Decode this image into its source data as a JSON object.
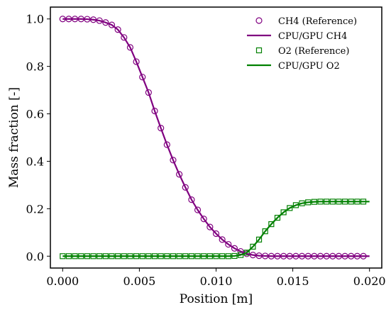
{
  "chart_data": {
    "type": "line",
    "xlabel": "Position [m]",
    "ylabel": "Mass fraction [-]",
    "xlim": [
      -0.0008,
      0.0208
    ],
    "ylim": [
      -0.05,
      1.05
    ],
    "xticks": [
      0.0,
      0.005,
      0.01,
      0.015,
      0.02
    ],
    "xtick_labels": [
      "0.000",
      "0.005",
      "0.010",
      "0.015",
      "0.020"
    ],
    "yticks": [
      0.0,
      0.2,
      0.4,
      0.6,
      0.8,
      1.0
    ],
    "ytick_labels": [
      "0.0",
      "0.2",
      "0.4",
      "0.6",
      "0.8",
      "1.0"
    ],
    "grid": false,
    "legend_position": "top-right",
    "series": [
      {
        "name": "CH4 (Reference)",
        "kind": "marker-circle",
        "color": "#800080",
        "x": [
          0.0,
          0.0004,
          0.0008,
          0.0012,
          0.0016,
          0.002,
          0.0024,
          0.0028,
          0.0032,
          0.0036,
          0.004,
          0.0044,
          0.0048,
          0.0052,
          0.0056,
          0.006,
          0.0064,
          0.0068,
          0.0072,
          0.0076,
          0.008,
          0.0084,
          0.0088,
          0.0092,
          0.0096,
          0.01,
          0.0104,
          0.0108,
          0.0112,
          0.0116,
          0.012,
          0.0124,
          0.0128,
          0.0132,
          0.0136,
          0.014,
          0.0144,
          0.0148,
          0.0152,
          0.0156,
          0.016,
          0.0164,
          0.0168,
          0.0172,
          0.0176,
          0.018,
          0.0184,
          0.0188,
          0.0192,
          0.0196
        ],
        "y": [
          1.0,
          1.0,
          1.0,
          1.0,
          0.999,
          0.997,
          0.993,
          0.985,
          0.975,
          0.955,
          0.922,
          0.88,
          0.82,
          0.755,
          0.69,
          0.612,
          0.54,
          0.47,
          0.405,
          0.345,
          0.29,
          0.238,
          0.195,
          0.157,
          0.123,
          0.095,
          0.07,
          0.05,
          0.033,
          0.02,
          0.01,
          0.005,
          0.002,
          0.001,
          0.0,
          0.0,
          0.0,
          0.0,
          0.0,
          0.0,
          0.0,
          0.0,
          0.0,
          0.0,
          0.0,
          0.0,
          0.0,
          0.0,
          0.0,
          0.0
        ]
      },
      {
        "name": "CPU/GPU CH4",
        "kind": "line",
        "color": "#800080",
        "x": [
          0.0,
          0.0004,
          0.0008,
          0.0012,
          0.0016,
          0.002,
          0.0024,
          0.0028,
          0.0032,
          0.0036,
          0.004,
          0.0044,
          0.0048,
          0.0052,
          0.0056,
          0.006,
          0.0064,
          0.0068,
          0.0072,
          0.0076,
          0.008,
          0.0084,
          0.0088,
          0.0092,
          0.0096,
          0.01,
          0.0104,
          0.0108,
          0.0112,
          0.0116,
          0.012,
          0.0124,
          0.0128,
          0.0132,
          0.0136,
          0.014,
          0.0144,
          0.0148,
          0.0152,
          0.0156,
          0.016,
          0.0164,
          0.0168,
          0.0172,
          0.0176,
          0.018,
          0.0184,
          0.0188,
          0.0192,
          0.0196,
          0.02
        ],
        "y": [
          1.0,
          1.0,
          1.0,
          1.0,
          0.999,
          0.997,
          0.993,
          0.985,
          0.975,
          0.955,
          0.922,
          0.88,
          0.82,
          0.755,
          0.69,
          0.612,
          0.54,
          0.47,
          0.405,
          0.345,
          0.29,
          0.238,
          0.195,
          0.157,
          0.123,
          0.095,
          0.07,
          0.05,
          0.033,
          0.02,
          0.01,
          0.005,
          0.002,
          0.001,
          0.0,
          0.0,
          0.0,
          0.0,
          0.0,
          0.0,
          0.0,
          0.0,
          0.0,
          0.0,
          0.0,
          0.0,
          0.0,
          0.0,
          0.0,
          0.0,
          0.0
        ]
      },
      {
        "name": "O2 (Reference)",
        "kind": "marker-square",
        "color": "#008000",
        "x": [
          0.0,
          0.0004,
          0.0008,
          0.0012,
          0.0016,
          0.002,
          0.0024,
          0.0028,
          0.0032,
          0.0036,
          0.004,
          0.0044,
          0.0048,
          0.0052,
          0.0056,
          0.006,
          0.0064,
          0.0068,
          0.0072,
          0.0076,
          0.008,
          0.0084,
          0.0088,
          0.0092,
          0.0096,
          0.01,
          0.0104,
          0.0108,
          0.0112,
          0.0116,
          0.012,
          0.0124,
          0.0128,
          0.0132,
          0.0136,
          0.014,
          0.0144,
          0.0148,
          0.0152,
          0.0156,
          0.016,
          0.0164,
          0.0168,
          0.0172,
          0.0176,
          0.018,
          0.0184,
          0.0188,
          0.0192,
          0.0196
        ],
        "y": [
          0.0,
          0.0,
          0.0,
          0.0,
          0.0,
          0.0,
          0.0,
          0.0,
          0.0,
          0.0,
          0.0,
          0.0,
          0.0,
          0.0,
          0.0,
          0.0,
          0.0,
          0.0,
          0.0,
          0.0,
          0.0,
          0.0,
          0.0,
          0.0,
          0.0,
          0.0,
          0.0,
          0.0,
          0.001,
          0.005,
          0.015,
          0.04,
          0.07,
          0.105,
          0.135,
          0.162,
          0.185,
          0.203,
          0.215,
          0.223,
          0.227,
          0.229,
          0.23,
          0.23,
          0.23,
          0.23,
          0.23,
          0.23,
          0.23,
          0.23
        ]
      },
      {
        "name": "CPU/GPU O2",
        "kind": "line",
        "color": "#008000",
        "x": [
          0.0,
          0.0004,
          0.0008,
          0.0012,
          0.0016,
          0.002,
          0.0024,
          0.0028,
          0.0032,
          0.0036,
          0.004,
          0.0044,
          0.0048,
          0.0052,
          0.0056,
          0.006,
          0.0064,
          0.0068,
          0.0072,
          0.0076,
          0.008,
          0.0084,
          0.0088,
          0.0092,
          0.0096,
          0.01,
          0.0104,
          0.0108,
          0.0112,
          0.0116,
          0.012,
          0.0124,
          0.0128,
          0.0132,
          0.0136,
          0.014,
          0.0144,
          0.0148,
          0.0152,
          0.0156,
          0.016,
          0.0164,
          0.0168,
          0.0172,
          0.0176,
          0.018,
          0.0184,
          0.0188,
          0.0192,
          0.0196,
          0.02
        ],
        "y": [
          0.0,
          0.0,
          0.0,
          0.0,
          0.0,
          0.0,
          0.0,
          0.0,
          0.0,
          0.0,
          0.0,
          0.0,
          0.0,
          0.0,
          0.0,
          0.0,
          0.0,
          0.0,
          0.0,
          0.0,
          0.0,
          0.0,
          0.0,
          0.0,
          0.0,
          0.0,
          0.0,
          0.0,
          0.001,
          0.005,
          0.015,
          0.04,
          0.07,
          0.105,
          0.135,
          0.162,
          0.185,
          0.203,
          0.215,
          0.223,
          0.227,
          0.229,
          0.23,
          0.23,
          0.23,
          0.23,
          0.23,
          0.23,
          0.23,
          0.23,
          0.23
        ]
      }
    ]
  }
}
